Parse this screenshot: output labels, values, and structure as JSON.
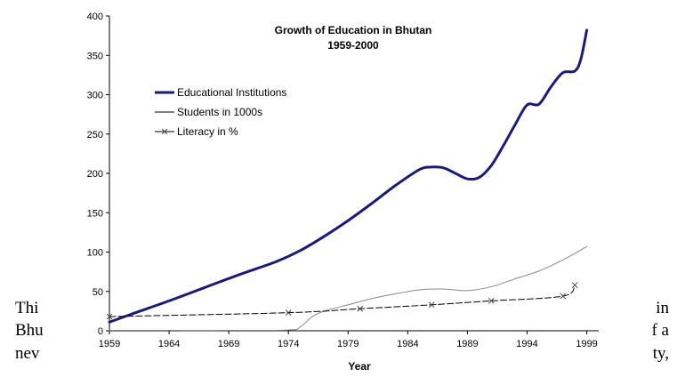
{
  "document": {
    "left_fragments": [
      "Thi",
      "Bhu",
      "nev"
    ],
    "right_fragments": [
      "in",
      "f a",
      "ty,"
    ]
  },
  "chart_data": {
    "type": "line",
    "title": "Growth of Education in Bhutan",
    "subtitle": "1959-2000",
    "xlabel": "Year",
    "ylabel": "",
    "xlim": [
      1959,
      2000
    ],
    "ylim": [
      0,
      400
    ],
    "x_ticks": [
      1959,
      1964,
      1969,
      1974,
      1979,
      1984,
      1989,
      1994,
      1999
    ],
    "y_ticks": [
      0,
      50,
      100,
      150,
      200,
      250,
      300,
      350,
      400
    ],
    "legend_position": "left-middle",
    "grid": false,
    "series": [
      {
        "name": "Educational Institutions",
        "color": "#1a1a7a",
        "style": "thick",
        "x": [
          1959,
          1961,
          1964,
          1967,
          1970,
          1973,
          1975,
          1977,
          1979,
          1981,
          1983,
          1985,
          1986,
          1987,
          1988,
          1989,
          1990,
          1991,
          1992,
          1993,
          1994,
          1995,
          1996,
          1997,
          1998,
          1998.5,
          1999
        ],
        "y": [
          11,
          22,
          38,
          55,
          72,
          88,
          102,
          120,
          140,
          162,
          185,
          205,
          208,
          207,
          200,
          193,
          195,
          210,
          235,
          262,
          287,
          288,
          310,
          328,
          330,
          345,
          382
        ]
      },
      {
        "name": "Students in 1000s",
        "color": "#888888",
        "style": "thin",
        "x": [
          1959,
          1964,
          1969,
          1974,
          1975,
          1976,
          1977,
          1979,
          1981,
          1983,
          1985,
          1987,
          1989,
          1991,
          1993,
          1995,
          1997,
          1999
        ],
        "y": [
          0.5,
          0.5,
          0.5,
          1,
          5,
          18,
          25,
          33,
          41,
          47,
          52,
          53,
          51,
          56,
          66,
          76,
          90,
          107
        ]
      },
      {
        "name": "Literacy in %",
        "color": "#000000",
        "style": "dashed-x",
        "x": [
          1959,
          1974,
          1980,
          1986,
          1991,
          1997,
          1998
        ],
        "y": [
          18,
          23,
          28,
          33,
          38,
          44,
          58
        ]
      }
    ]
  }
}
